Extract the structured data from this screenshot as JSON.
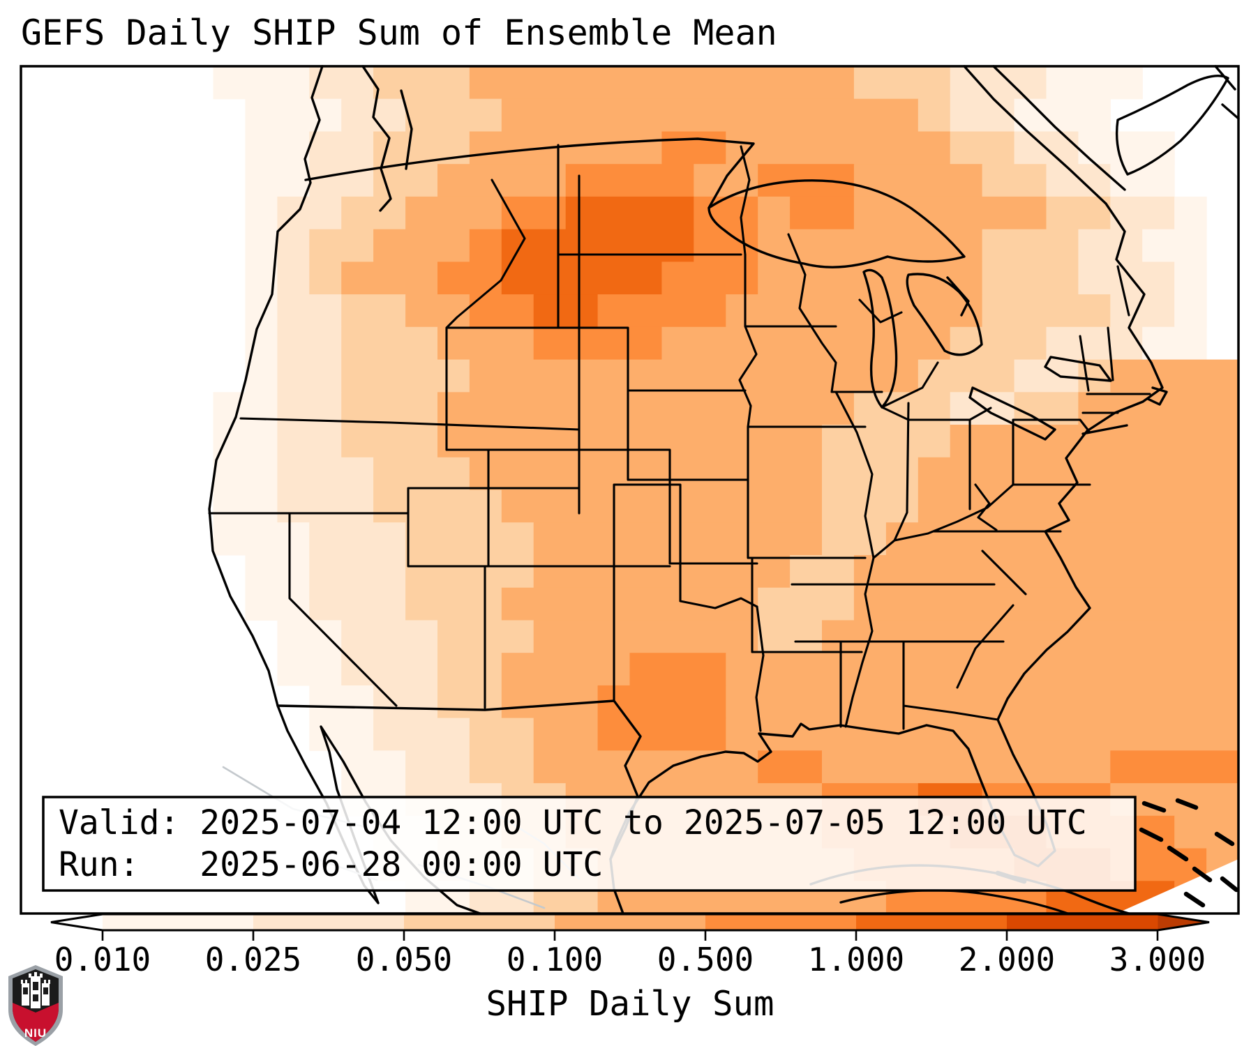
{
  "page": {
    "title": "GEFS Daily SHIP Sum of Ensemble Mean"
  },
  "info_box": {
    "valid_line": "Valid: 2025-07-04 12:00 UTC to 2025-07-05 12:00 UTC",
    "run_line": "Run:   2025-06-28 00:00 UTC"
  },
  "logo": {
    "org": "NIU"
  },
  "chart_data": {
    "type": "heatmap",
    "title": "GEFS Daily SHIP Sum of Ensemble Mean",
    "variable": "SHIP Daily Sum",
    "valid_start": "2025-07-04 12:00 UTC",
    "valid_end": "2025-07-05 12:00 UTC",
    "run": "2025-06-28 00:00 UTC",
    "region": "Continental United States",
    "colorbar": {
      "label": "SHIP Daily Sum",
      "orientation": "horizontal",
      "extend": "both",
      "levels": [
        0.01,
        0.025,
        0.05,
        0.1,
        0.5,
        1.0,
        2.0,
        3.0
      ],
      "tick_labels": [
        "0.010",
        "0.025",
        "0.050",
        "0.100",
        "0.500",
        "1.000",
        "2.000",
        "3.000"
      ],
      "colors": [
        "#fff5eb",
        "#fee6ce",
        "#fdd0a2",
        "#fdae6b",
        "#fd8d3c",
        "#f16913",
        "#d94801"
      ],
      "under_color": "#ffffff",
      "over_color": "#bc3c03"
    },
    "map": {
      "grid": {
        "cols": 38,
        "rows": 26,
        "palette": [
          "#ffffff",
          "#fff5eb",
          "#fee6ce",
          "#fdd0a2",
          "#fdae6b",
          "#fd8d3c",
          "#f16913"
        ],
        "rows_rle": [
          [
            [
              0,
              6
            ],
            [
              1,
              3
            ],
            [
              2,
              2
            ],
            [
              3,
              3
            ],
            [
              4,
              12
            ],
            [
              3,
              3
            ],
            [
              2,
              3
            ],
            [
              1,
              3
            ],
            [
              0,
              3
            ]
          ],
          [
            [
              0,
              7
            ],
            [
              1,
              3
            ],
            [
              2,
              2
            ],
            [
              3,
              3
            ],
            [
              4,
              13
            ],
            [
              3,
              1
            ],
            [
              2,
              2
            ],
            [
              1,
              3
            ],
            [
              0,
              4
            ]
          ],
          [
            [
              0,
              7
            ],
            [
              1,
              2
            ],
            [
              2,
              2
            ],
            [
              3,
              3
            ],
            [
              4,
              6
            ],
            [
              5,
              2
            ],
            [
              4,
              7
            ],
            [
              3,
              2
            ],
            [
              2,
              2
            ],
            [
              1,
              3
            ],
            [
              0,
              2
            ]
          ],
          [
            [
              0,
              7
            ],
            [
              1,
              2
            ],
            [
              2,
              2
            ],
            [
              3,
              2
            ],
            [
              4,
              4
            ],
            [
              5,
              4
            ],
            [
              4,
              2
            ],
            [
              5,
              3
            ],
            [
              4,
              4
            ],
            [
              3,
              2
            ],
            [
              2,
              2
            ],
            [
              1,
              2
            ],
            [
              0,
              2
            ]
          ],
          [
            [
              0,
              7
            ],
            [
              1,
              1
            ],
            [
              2,
              2
            ],
            [
              3,
              2
            ],
            [
              4,
              3
            ],
            [
              5,
              2
            ],
            [
              6,
              4
            ],
            [
              5,
              2
            ],
            [
              4,
              1
            ],
            [
              5,
              2
            ],
            [
              4,
              6
            ],
            [
              3,
              2
            ],
            [
              2,
              2
            ],
            [
              1,
              1
            ],
            [
              0,
              1
            ]
          ],
          [
            [
              0,
              7
            ],
            [
              1,
              1
            ],
            [
              2,
              1
            ],
            [
              3,
              2
            ],
            [
              4,
              3
            ],
            [
              5,
              1
            ],
            [
              6,
              6
            ],
            [
              5,
              2
            ],
            [
              4,
              7
            ],
            [
              3,
              3
            ],
            [
              2,
              2
            ],
            [
              1,
              2
            ],
            [
              0,
              1
            ]
          ],
          [
            [
              0,
              7
            ],
            [
              1,
              1
            ],
            [
              2,
              1
            ],
            [
              3,
              1
            ],
            [
              4,
              3
            ],
            [
              5,
              2
            ],
            [
              6,
              5
            ],
            [
              5,
              3
            ],
            [
              4,
              7
            ],
            [
              3,
              3
            ],
            [
              2,
              3
            ],
            [
              1,
              1
            ],
            [
              0,
              1
            ]
          ],
          [
            [
              0,
              7
            ],
            [
              1,
              1
            ],
            [
              2,
              2
            ],
            [
              3,
              2
            ],
            [
              4,
              2
            ],
            [
              5,
              2
            ],
            [
              6,
              2
            ],
            [
              5,
              4
            ],
            [
              4,
              8
            ],
            [
              3,
              4
            ],
            [
              2,
              2
            ],
            [
              1,
              1
            ],
            [
              0,
              1
            ]
          ],
          [
            [
              0,
              7
            ],
            [
              1,
              1
            ],
            [
              2,
              2
            ],
            [
              3,
              3
            ],
            [
              4,
              3
            ],
            [
              5,
              4
            ],
            [
              4,
              9
            ],
            [
              3,
              3
            ],
            [
              2,
              3
            ],
            [
              1,
              2
            ],
            [
              0,
              1
            ]
          ],
          [
            [
              0,
              7
            ],
            [
              1,
              1
            ],
            [
              2,
              2
            ],
            [
              3,
              4
            ],
            [
              4,
              14
            ],
            [
              3,
              3
            ],
            [
              2,
              2
            ],
            [
              3,
              1
            ],
            [
              4,
              4
            ]
          ],
          [
            [
              0,
              6
            ],
            [
              1,
              2
            ],
            [
              2,
              2
            ],
            [
              3,
              3
            ],
            [
              4,
              13
            ],
            [
              3,
              3
            ],
            [
              2,
              2
            ],
            [
              3,
              2
            ],
            [
              4,
              5
            ]
          ],
          [
            [
              0,
              6
            ],
            [
              1,
              2
            ],
            [
              2,
              2
            ],
            [
              3,
              3
            ],
            [
              4,
              12
            ],
            [
              3,
              4
            ],
            [
              4,
              9
            ]
          ],
          [
            [
              0,
              6
            ],
            [
              1,
              2
            ],
            [
              2,
              3
            ],
            [
              3,
              3
            ],
            [
              4,
              11
            ],
            [
              3,
              3
            ],
            [
              4,
              10
            ]
          ],
          [
            [
              0,
              6
            ],
            [
              1,
              2
            ],
            [
              2,
              3
            ],
            [
              3,
              4
            ],
            [
              4,
              10
            ],
            [
              3,
              3
            ],
            [
              4,
              10
            ]
          ],
          [
            [
              0,
              6
            ],
            [
              1,
              3
            ],
            [
              2,
              3
            ],
            [
              3,
              4
            ],
            [
              4,
              9
            ],
            [
              3,
              2
            ],
            [
              4,
              11
            ]
          ],
          [
            [
              0,
              7
            ],
            [
              1,
              2
            ],
            [
              2,
              3
            ],
            [
              3,
              4
            ],
            [
              4,
              8
            ],
            [
              3,
              2
            ],
            [
              4,
              12
            ]
          ],
          [
            [
              0,
              7
            ],
            [
              1,
              2
            ],
            [
              2,
              3
            ],
            [
              3,
              3
            ],
            [
              4,
              8
            ],
            [
              3,
              3
            ],
            [
              4,
              12
            ]
          ],
          [
            [
              0,
              8
            ],
            [
              1,
              2
            ],
            [
              2,
              3
            ],
            [
              3,
              3
            ],
            [
              4,
              7
            ],
            [
              3,
              2
            ],
            [
              4,
              13
            ]
          ],
          [
            [
              0,
              8
            ],
            [
              1,
              2
            ],
            [
              2,
              3
            ],
            [
              3,
              2
            ],
            [
              4,
              4
            ],
            [
              5,
              3
            ],
            [
              4,
              16
            ]
          ],
          [
            [
              0,
              9
            ],
            [
              1,
              2
            ],
            [
              2,
              2
            ],
            [
              3,
              2
            ],
            [
              4,
              3
            ],
            [
              5,
              4
            ],
            [
              4,
              16
            ]
          ],
          [
            [
              0,
              9
            ],
            [
              1,
              2
            ],
            [
              2,
              3
            ],
            [
              3,
              2
            ],
            [
              4,
              2
            ],
            [
              5,
              4
            ],
            [
              4,
              16
            ]
          ],
          [
            [
              0,
              10
            ],
            [
              1,
              2
            ],
            [
              2,
              2
            ],
            [
              3,
              2
            ],
            [
              4,
              7
            ],
            [
              5,
              2
            ],
            [
              4,
              9
            ],
            [
              5,
              4
            ]
          ],
          [
            [
              0,
              10
            ],
            [
              1,
              2
            ],
            [
              2,
              3
            ],
            [
              3,
              2
            ],
            [
              4,
              8
            ],
            [
              5,
              3
            ],
            [
              6,
              2
            ],
            [
              5,
              4
            ],
            [
              4,
              4
            ]
          ],
          [
            [
              0,
              11
            ],
            [
              1,
              2
            ],
            [
              2,
              2
            ],
            [
              3,
              2
            ],
            [
              4,
              8
            ],
            [
              5,
              4
            ],
            [
              6,
              3
            ],
            [
              5,
              4
            ],
            [
              4,
              2
            ]
          ],
          [
            [
              0,
              11
            ],
            [
              1,
              2
            ],
            [
              2,
              3
            ],
            [
              3,
              2
            ],
            [
              4,
              8
            ],
            [
              5,
              5
            ],
            [
              6,
              3
            ],
            [
              5,
              3
            ],
            [
              4,
              1
            ]
          ],
          [
            [
              0,
              12
            ],
            [
              1,
              2
            ],
            [
              2,
              2
            ],
            [
              3,
              2
            ],
            [
              4,
              9
            ],
            [
              5,
              5
            ],
            [
              6,
              4
            ],
            [
              5,
              2
            ]
          ]
        ]
      }
    }
  }
}
